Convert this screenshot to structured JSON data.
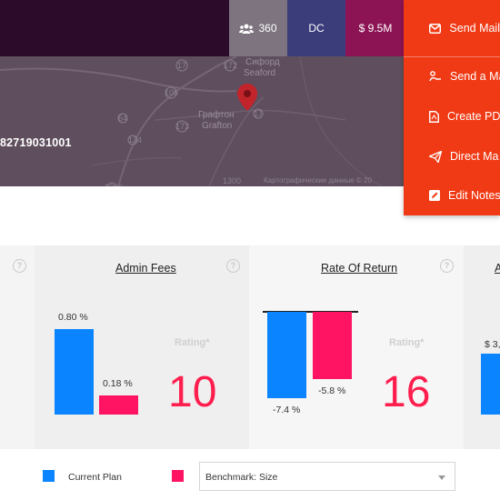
{
  "header": {
    "users_count": "360",
    "state": "DC",
    "amount": "$ 9.5M"
  },
  "map": {
    "plan_id": "82719031001",
    "place_labels": [
      "Сифорд",
      "Seaford",
      "Графтон",
      "Grafton"
    ],
    "route_labels": [
      "17",
      "172",
      "105",
      "64",
      "173",
      "134",
      "17",
      "1300",
      "1200"
    ],
    "attribution": "Картографические данные © 20"
  },
  "menu": {
    "items": [
      {
        "label": "Send Mail",
        "icon": "mail-icon"
      },
      {
        "label": "Send a Ma",
        "icon": "handshake-icon"
      },
      {
        "label": "Create PD",
        "icon": "pdf-icon"
      },
      {
        "label": "Direct Ma",
        "icon": "send-icon"
      },
      {
        "label": "Edit Notes",
        "icon": "edit-icon"
      }
    ]
  },
  "cards": [
    {
      "title": "Admin Fees",
      "rating_label": "Rating*",
      "rating": "10",
      "chart_data": {
        "type": "bar",
        "categories": [
          "Current Plan",
          "Benchmark: Size"
        ],
        "values": [
          0.8,
          0.18
        ],
        "labels": [
          "0.80 %",
          "0.18 %"
        ]
      }
    },
    {
      "title": "Rate Of Return",
      "rating_label": "Rating*",
      "rating": "16",
      "chart_data": {
        "type": "bar",
        "categories": [
          "Current Plan",
          "Benchmark: Size"
        ],
        "values": [
          -7.4,
          -5.8
        ],
        "labels": [
          "-7.4 %",
          "-5.8 %"
        ]
      }
    },
    {
      "title": "A",
      "value_label": "$ 3,"
    }
  ],
  "legend": {
    "current_plan": "Current Plan",
    "benchmark": "Benchmark: Size"
  },
  "benchmark_select": {
    "value": "Benchmark: Size"
  },
  "colors": {
    "current_plan": "#0a84ff",
    "benchmark": "#ff1464",
    "menu_bg": "#f03a15",
    "rating": "#ff1e4e"
  }
}
